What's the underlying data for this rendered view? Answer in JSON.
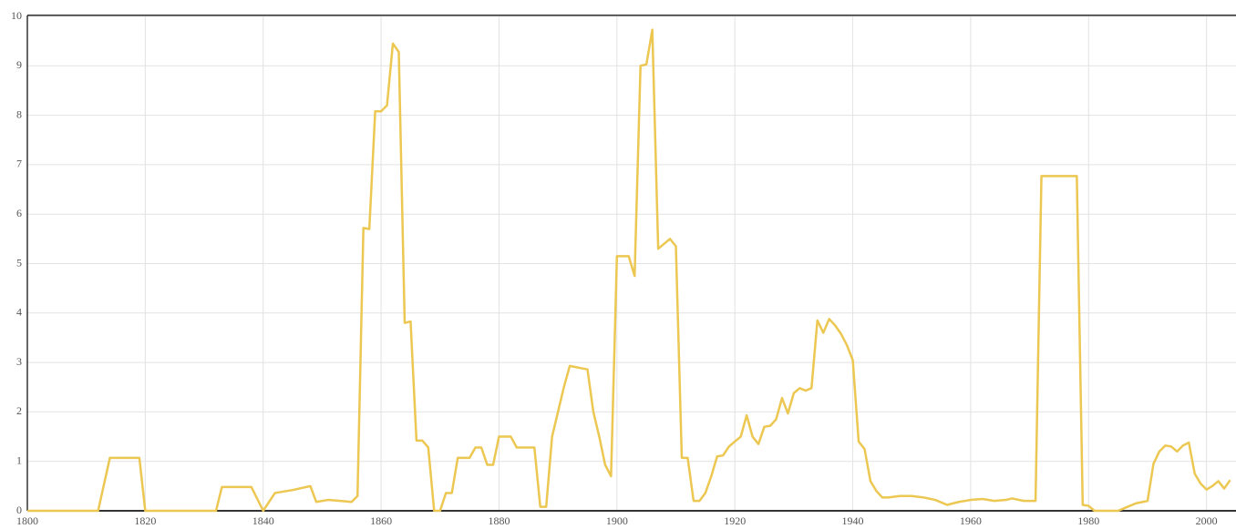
{
  "chart_data": {
    "type": "line",
    "x": [
      1800,
      1812,
      1814,
      1819,
      1820,
      1832,
      1833,
      1838,
      1840,
      1842,
      1845,
      1848,
      1849,
      1851,
      1855,
      1856,
      1857,
      1858,
      1859,
      1860,
      1861,
      1862,
      1863,
      1864,
      1865,
      1866,
      1867,
      1868,
      1869,
      1870,
      1871,
      1872,
      1873,
      1875,
      1876,
      1877,
      1878,
      1879,
      1880,
      1882,
      1883,
      1886,
      1887,
      1888,
      1889,
      1890,
      1891,
      1892,
      1895,
      1896,
      1897,
      1898,
      1899,
      1900,
      1902,
      1903,
      1904,
      1905,
      1906,
      1907,
      1909,
      1910,
      1911,
      1912,
      1913,
      1914,
      1915,
      1916,
      1917,
      1918,
      1919,
      1920,
      1921,
      1922,
      1923,
      1924,
      1925,
      1926,
      1927,
      1928,
      1929,
      1930,
      1931,
      1932,
      1933,
      1934,
      1935,
      1936,
      1937,
      1938,
      1939,
      1940,
      1941,
      1942,
      1943,
      1944,
      1945,
      1946,
      1948,
      1950,
      1952,
      1954,
      1956,
      1958,
      1960,
      1962,
      1964,
      1966,
      1967,
      1969,
      1971,
      1972,
      1978,
      1979,
      1980,
      1981,
      1985,
      1986,
      1988,
      1990,
      1991,
      1992,
      1993,
      1994,
      1995,
      1996,
      1997,
      1998,
      1999,
      2000,
      2001,
      2002,
      2003,
      2004
    ],
    "series": [
      {
        "color": "#ecc752",
        "values": [
          0,
          0,
          1.07,
          1.07,
          0,
          0,
          0.48,
          0.48,
          0,
          0.36,
          0.42,
          0.5,
          0.18,
          0.22,
          0.18,
          0.3,
          5.72,
          5.7,
          8.08,
          8.08,
          8.2,
          9.45,
          9.28,
          3.8,
          3.83,
          1.42,
          1.42,
          1.28,
          0,
          0,
          0.36,
          0.36,
          1.07,
          1.07,
          1.28,
          1.28,
          0.93,
          0.93,
          1.5,
          1.5,
          1.28,
          1.28,
          0.08,
          0.08,
          1.5,
          2.0,
          2.5,
          2.93,
          2.86,
          2.0,
          1.5,
          0.93,
          0.7,
          5.15,
          5.15,
          4.75,
          9.0,
          9.03,
          9.73,
          5.3,
          5.5,
          5.35,
          1.07,
          1.07,
          0.2,
          0.2,
          0.36,
          0.7,
          1.1,
          1.12,
          1.3,
          1.4,
          1.5,
          1.93,
          1.5,
          1.35,
          1.7,
          1.72,
          1.85,
          2.28,
          1.97,
          2.38,
          2.48,
          2.43,
          2.48,
          3.85,
          3.6,
          3.88,
          3.75,
          3.58,
          3.35,
          3.05,
          1.4,
          1.25,
          0.6,
          0.4,
          0.27,
          0.27,
          0.3,
          0.3,
          0.27,
          0.22,
          0.12,
          0.18,
          0.22,
          0.24,
          0.2,
          0.22,
          0.25,
          0.2,
          0.2,
          6.77,
          6.77,
          0.12,
          0.1,
          0,
          0,
          0.05,
          0.15,
          0.2,
          0.95,
          1.2,
          1.32,
          1.3,
          1.2,
          1.32,
          1.38,
          0.75,
          0.55,
          0.43,
          0.5,
          0.6,
          0.45,
          0.62
        ]
      }
    ],
    "xlim": [
      1800,
      2005
    ],
    "xticks": [
      1800,
      1820,
      1840,
      1860,
      1880,
      1900,
      1920,
      1940,
      1960,
      1980,
      2000
    ],
    "ylim": [
      0,
      10
    ],
    "yticks": [
      0,
      1,
      2,
      3,
      4,
      5,
      6,
      7,
      8,
      9,
      10
    ],
    "grid": true
  }
}
